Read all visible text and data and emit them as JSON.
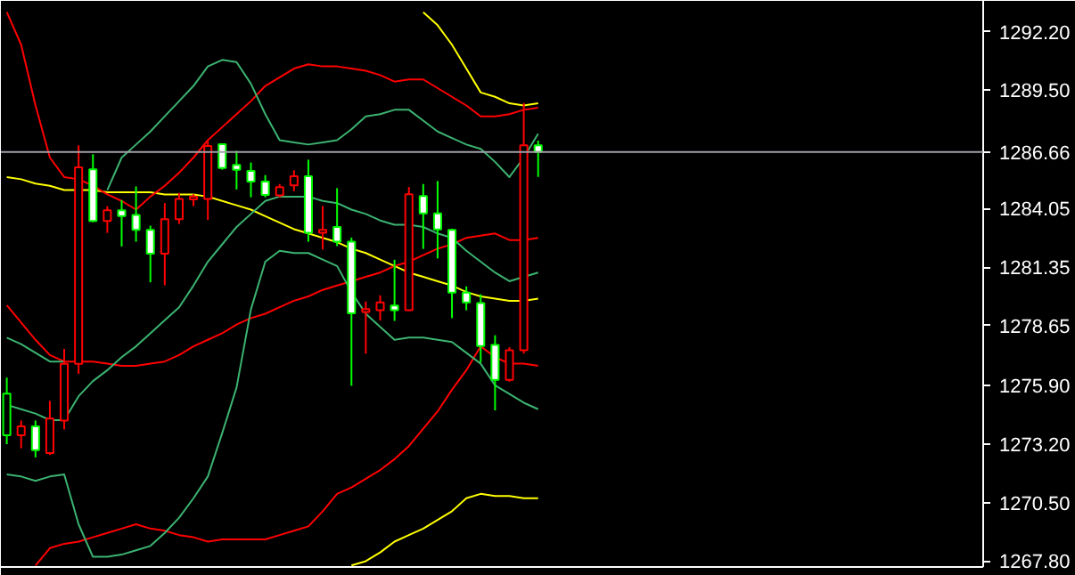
{
  "chart_data": {
    "type": "candlestick",
    "categories": [
      null,
      null,
      null,
      null,
      null,
      null,
      null,
      null,
      null,
      null,
      null,
      null,
      null,
      null,
      null,
      null,
      null,
      null,
      null,
      null,
      null,
      null,
      null,
      null,
      null,
      null,
      null,
      null,
      null,
      null,
      null,
      null,
      null,
      null,
      null,
      null,
      null,
      null
    ],
    "ohlc": [
      [
        1273.6,
        1276.26,
        1273.19,
        1275.52
      ],
      [
        1273.6,
        1274.28,
        1273.0,
        1274.01
      ],
      [
        1274.01,
        1274.28,
        1272.58,
        1272.91
      ],
      [
        1272.78,
        1275.19,
        1272.69,
        1274.37
      ],
      [
        1274.28,
        1277.58,
        1273.87,
        1276.89
      ],
      [
        1276.89,
        1286.96,
        1276.43,
        1285.95
      ],
      [
        1285.86,
        1286.55,
        1283.42,
        1283.48
      ],
      [
        1283.48,
        1284.16,
        1282.93,
        1283.97
      ],
      [
        1283.97,
        1284.44,
        1282.3,
        1283.7
      ],
      [
        1283.75,
        1285.07,
        1282.52,
        1283.07
      ],
      [
        1283.07,
        1283.26,
        1280.65,
        1281.97
      ],
      [
        1281.97,
        1284.3,
        1280.51,
        1283.56
      ],
      [
        1283.56,
        1284.77,
        1283.34,
        1284.49
      ],
      [
        1284.47,
        1284.71,
        1284.16,
        1284.6
      ],
      [
        1284.49,
        1287.15,
        1283.53,
        1286.93
      ],
      [
        1287.02,
        1287.04,
        1285.84,
        1285.92
      ],
      [
        1286.06,
        1286.71,
        1284.93,
        1285.84
      ],
      [
        1285.78,
        1286.17,
        1284.57,
        1285.29
      ],
      [
        1285.29,
        1285.59,
        1284.57,
        1284.68
      ],
      [
        1284.66,
        1285.18,
        1284.57,
        1285.04
      ],
      [
        1285.12,
        1285.81,
        1284.85,
        1285.54
      ],
      [
        1285.54,
        1286.3,
        1282.52,
        1282.93
      ],
      [
        1282.93,
        1284.16,
        1282.16,
        1283.07
      ],
      [
        1283.2,
        1284.99,
        1282.32,
        1282.52
      ],
      [
        1282.52,
        1282.71,
        1275.88,
        1279.22
      ],
      [
        1279.28,
        1279.77,
        1277.36,
        1279.42
      ],
      [
        1279.36,
        1280.05,
        1278.89,
        1279.72
      ],
      [
        1279.58,
        1281.69,
        1278.87,
        1279.36
      ],
      [
        1279.36,
        1285.04,
        1279.33,
        1284.71
      ],
      [
        1284.63,
        1285.18,
        1282.19,
        1283.83
      ],
      [
        1283.83,
        1285.32,
        1281.75,
        1283.09
      ],
      [
        1283.07,
        1283.12,
        1279.0,
        1280.18
      ],
      [
        1280.18,
        1280.46,
        1279.36,
        1279.72
      ],
      [
        1279.69,
        1280.1,
        1276.95,
        1277.71
      ],
      [
        1277.77,
        1278.21,
        1274.75,
        1276.15
      ],
      [
        1276.15,
        1277.66,
        1276.07,
        1277.52
      ],
      [
        1277.52,
        1288.91,
        1277.36,
        1286.96
      ],
      [
        1286.96,
        1287.18,
        1285.51,
        1286.66
      ]
    ],
    "colors": [
      "#00ff00",
      "#ff0000",
      "#00ff00",
      "#ff0000",
      "#ff0000",
      "#ff0000",
      "#00ff00",
      "#ff0000",
      "#00ff00",
      "#00ff00",
      "#00ff00",
      "#ff0000",
      "#ff0000",
      "#ff0000",
      "#ff0000",
      "#00ff00",
      "#00ff00",
      "#00ff00",
      "#00ff00",
      "#ff0000",
      "#ff0000",
      "#00ff00",
      "#ff0000",
      "#00ff00",
      "#00ff00",
      "#ff0000",
      "#ff0000",
      "#00ff00",
      "#ff0000",
      "#00ff00",
      "#00ff00",
      "#00ff00",
      "#00ff00",
      "#00ff00",
      "#00ff00",
      "#ff0000",
      "#ff0000",
      "#00ff00"
    ],
    "series": [
      {
        "type": "line",
        "color": "#ffff00",
        "values": [
          null,
          null,
          null,
          null,
          null,
          null,
          null,
          null,
          null,
          null,
          null,
          null,
          null,
          null,
          null,
          null,
          null,
          null,
          null,
          null,
          null,
          null,
          null,
          null,
          null,
          null,
          null,
          null,
          null,
          1293.1,
          1292.5,
          1291.6,
          1290.5,
          1289.4,
          1289.2,
          1288.9,
          1288.8,
          1288.9
        ]
      },
      {
        "type": "line",
        "color": "#ffff00",
        "values": [
          1285.5,
          1285.4,
          1285.2,
          1285.1,
          1284.9,
          1284.9,
          1284.9,
          1284.8,
          1284.8,
          1284.8,
          1284.8,
          1284.7,
          1284.7,
          1284.7,
          1284.6,
          1284.4,
          1284.2,
          1284.0,
          1283.7,
          1283.4,
          1283.1,
          1282.9,
          1282.7,
          1282.5,
          1282.2,
          1282.0,
          1281.7,
          1281.4,
          1281.1,
          1280.9,
          1280.7,
          1280.5,
          1280.2,
          1280.0,
          1279.9,
          1279.8,
          1279.8,
          1279.9
        ]
      },
      {
        "type": "line",
        "color": "#ffff00",
        "values": [
          null,
          null,
          null,
          null,
          null,
          null,
          null,
          null,
          null,
          null,
          null,
          null,
          null,
          null,
          null,
          null,
          null,
          null,
          null,
          null,
          null,
          null,
          null,
          null,
          1267.6,
          1267.8,
          1268.2,
          1268.7,
          1269.0,
          1269.3,
          1269.7,
          1270.1,
          1270.7,
          1270.9,
          1270.8,
          1270.8,
          1270.7,
          1270.7
        ]
      },
      {
        "type": "line",
        "color": "#ff0000",
        "values": [
          1293.1,
          1291.6,
          1288.8,
          1286.4,
          1285.5,
          1285.4,
          1285.1,
          1284.7,
          1284.4,
          1284.0,
          1284.6,
          1285.1,
          1285.7,
          1286.4,
          1287.2,
          1287.8,
          1288.4,
          1289.0,
          1289.7,
          1290.1,
          1290.5,
          1290.7,
          1290.6,
          1290.6,
          1290.5,
          1290.4,
          1290.2,
          1289.9,
          1290.0,
          1290.0,
          1289.6,
          1289.2,
          1288.8,
          1288.3,
          1288.3,
          1288.4,
          1288.6,
          1288.7
        ]
      },
      {
        "type": "line",
        "color": "#ff0000",
        "values": [
          1279.6,
          1278.8,
          1278.0,
          1277.3,
          1277.0,
          1277.0,
          1277.0,
          1276.9,
          1276.8,
          1276.8,
          1276.9,
          1277.0,
          1277.3,
          1277.7,
          1278.0,
          1278.3,
          1278.7,
          1279.0,
          1279.2,
          1279.5,
          1279.8,
          1280.0,
          1280.3,
          1280.5,
          1280.7,
          1280.9,
          1281.1,
          1281.4,
          1281.6,
          1281.9,
          1282.2,
          1282.4,
          1282.7,
          1282.8,
          1282.9,
          1282.6,
          1282.6,
          1282.7
        ]
      },
      {
        "type": "line",
        "color": "#ff0000",
        "values": [
          null,
          null,
          1267.6,
          1268.4,
          1268.6,
          1268.7,
          1268.9,
          1269.1,
          1269.3,
          1269.5,
          1269.3,
          1269.2,
          1269.0,
          1268.9,
          1268.7,
          1268.8,
          1268.8,
          1268.8,
          1268.8,
          1269.0,
          1269.2,
          1269.4,
          1270.1,
          1270.9,
          1271.2,
          1271.6,
          1272.0,
          1272.5,
          1273.1,
          1273.9,
          1274.7,
          1275.7,
          1276.6,
          1277.7,
          1277.2,
          1276.9,
          1276.9,
          1276.8
        ]
      },
      {
        "type": "line",
        "color": "#3cb371",
        "values": [
          1278.1,
          1277.8,
          1277.4,
          1277.0,
          1277.0,
          null,
          null,
          1284.9,
          1286.4,
          1287.0,
          1287.6,
          1288.3,
          1289.0,
          1289.7,
          1290.6,
          1290.9,
          1290.8,
          1289.8,
          1288.4,
          1287.2,
          1287.1,
          1287.0,
          1287.1,
          1287.2,
          1287.7,
          1288.3,
          1288.4,
          1288.6,
          1288.6,
          1288.1,
          1287.6,
          1287.3,
          1287.0,
          1286.8,
          1286.2,
          1285.5,
          1286.4,
          1287.5
        ]
      },
      {
        "type": "line",
        "color": "#3cb371",
        "values": [
          1275.0,
          1274.8,
          1274.6,
          1274.3,
          1274.3,
          1275.4,
          1276.1,
          1276.6,
          1277.2,
          1277.7,
          1278.3,
          1278.9,
          1279.5,
          1280.5,
          1281.6,
          1282.4,
          1283.2,
          1283.8,
          1284.4,
          1284.6,
          1284.6,
          1284.6,
          1284.4,
          1284.3,
          1284.0,
          1283.8,
          1283.5,
          1283.3,
          1283.3,
          1283.2,
          1282.9,
          1282.7,
          1282.1,
          1281.6,
          1281.1,
          1280.7,
          1280.9,
          1281.1
        ]
      },
      {
        "type": "line",
        "color": "#3cb371",
        "values": [
          1271.8,
          1271.7,
          1271.5,
          1271.7,
          1271.8,
          1269.5,
          1268.0,
          1268.0,
          1268.1,
          1268.3,
          1268.5,
          1269.1,
          1269.8,
          1270.7,
          1271.7,
          1273.7,
          1275.8,
          1279.4,
          1281.6,
          1282.1,
          1282.0,
          1282.0,
          1281.7,
          1281.4,
          1280.2,
          1279.2,
          1278.6,
          1278.0,
          1278.1,
          1278.1,
          1278.0,
          1277.9,
          1277.4,
          1276.9,
          1275.9,
          1275.5,
          1275.1,
          1274.8
        ]
      }
    ],
    "ylim": [
      1267.53,
      1293.62
    ],
    "yticks": [
      {
        "value": 1292.2,
        "label": "1292.20"
      },
      {
        "value": 1289.5,
        "label": "1289.50"
      },
      {
        "value": 1284.05,
        "label": "1284.05"
      },
      {
        "value": 1281.35,
        "label": "1281.35"
      },
      {
        "value": 1278.65,
        "label": "1278.65"
      },
      {
        "value": 1275.9,
        "label": "1275.90"
      },
      {
        "value": 1273.2,
        "label": "1273.20"
      },
      {
        "value": 1270.5,
        "label": "1270.50"
      },
      {
        "value": 1267.8,
        "label": "1267.80"
      }
    ],
    "ref_lines": [
      {
        "axis": "y",
        "value": 1286.66,
        "label": "1286.66",
        "color": "#a0a0a8"
      }
    ],
    "grid": false
  }
}
